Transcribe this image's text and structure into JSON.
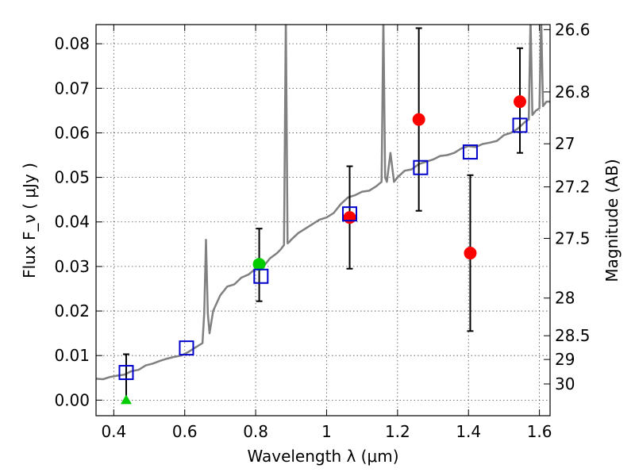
{
  "chart_data": {
    "type": "scatter",
    "xlabel": "Wavelength λ (μm)",
    "ylabel": "Flux F_ν ( μJy )",
    "ylabel_right": "Magnitude (AB)",
    "xlim": [
      0.35,
      1.63
    ],
    "ylim": [
      -0.0035,
      0.0843
    ],
    "grid": true,
    "x_ticks": [
      "0.4",
      "0.6",
      "0.8",
      "1",
      "1.2",
      "1.4",
      "1.6"
    ],
    "y_ticks": [
      "0.00",
      "0.01",
      "0.02",
      "0.03",
      "0.04",
      "0.05",
      "0.06",
      "0.07",
      "0.08"
    ],
    "mag_ticks": [
      "26.6",
      "26.8",
      "27",
      "27.2",
      "27.5",
      "28",
      "28.5",
      "29",
      "30"
    ],
    "series": [
      {
        "marker": "circle",
        "color": "#ff0000",
        "x": [
          1.065,
          1.26,
          1.405,
          1.545
        ],
        "y": [
          0.041,
          0.063,
          0.033,
          0.067
        ],
        "err_low": [
          0.0295,
          0.0425,
          0.0155,
          0.0555
        ],
        "err_high": [
          0.0525,
          0.0835,
          0.0505,
          0.079
        ]
      },
      {
        "marker": "circle",
        "color": "#00cc00",
        "x": [
          0.81
        ],
        "y": [
          0.0305
        ],
        "err_low": [
          0.0222
        ],
        "err_high": [
          0.0385
        ]
      },
      {
        "marker": "triangle",
        "color": "#00cc00",
        "x": [
          0.435
        ],
        "y": [
          0.0
        ],
        "err_low": [
          0.0
        ],
        "err_high": [
          0.0103
        ]
      },
      {
        "marker": "open-square",
        "color": "#0000cc",
        "x": [
          0.435,
          0.605,
          0.815,
          1.065,
          1.265,
          1.405,
          1.545
        ],
        "y": [
          0.0062,
          0.0117,
          0.0278,
          0.0418,
          0.0522,
          0.0557,
          0.0617
        ]
      },
      {
        "type": "line",
        "color": "#808080",
        "x": [
          0.35,
          0.37,
          0.39,
          0.41,
          0.43,
          0.45,
          0.47,
          0.49,
          0.51,
          0.53,
          0.55,
          0.57,
          0.59,
          0.61,
          0.63,
          0.65,
          0.655,
          0.66,
          0.665,
          0.67,
          0.68,
          0.7,
          0.72,
          0.74,
          0.76,
          0.78,
          0.8,
          0.82,
          0.84,
          0.86,
          0.87,
          0.88,
          0.885,
          0.89,
          0.895,
          0.9,
          0.92,
          0.94,
          0.96,
          0.98,
          1.0,
          1.02,
          1.04,
          1.06,
          1.08,
          1.1,
          1.12,
          1.14,
          1.155,
          1.16,
          1.165,
          1.17,
          1.18,
          1.19,
          1.2,
          1.22,
          1.24,
          1.26,
          1.28,
          1.3,
          1.32,
          1.34,
          1.36,
          1.38,
          1.4,
          1.42,
          1.44,
          1.46,
          1.48,
          1.5,
          1.52,
          1.54,
          1.56,
          1.57,
          1.575,
          1.58,
          1.59,
          1.6,
          1.605,
          1.61,
          1.62,
          1.63
        ],
        "y": [
          0.0048,
          0.0047,
          0.0052,
          0.0055,
          0.0057,
          0.0065,
          0.0068,
          0.0078,
          0.0082,
          0.0088,
          0.0093,
          0.0097,
          0.01,
          0.0108,
          0.0118,
          0.0128,
          0.0195,
          0.036,
          0.0195,
          0.015,
          0.02,
          0.0235,
          0.0255,
          0.026,
          0.0275,
          0.0282,
          0.0295,
          0.0298,
          0.0318,
          0.033,
          0.0338,
          0.0348,
          0.086,
          0.0352,
          0.0355,
          0.036,
          0.0375,
          0.0385,
          0.0395,
          0.0405,
          0.041,
          0.042,
          0.044,
          0.0455,
          0.046,
          0.0468,
          0.047,
          0.048,
          0.049,
          0.086,
          0.05,
          0.049,
          0.0555,
          0.049,
          0.05,
          0.0515,
          0.0518,
          0.053,
          0.0535,
          0.054,
          0.0548,
          0.055,
          0.0555,
          0.0565,
          0.057,
          0.0568,
          0.0575,
          0.0578,
          0.0582,
          0.0595,
          0.06,
          0.061,
          0.0625,
          0.063,
          0.086,
          0.064,
          0.065,
          0.0655,
          0.086,
          0.066,
          0.067,
          0.067
        ]
      }
    ]
  }
}
